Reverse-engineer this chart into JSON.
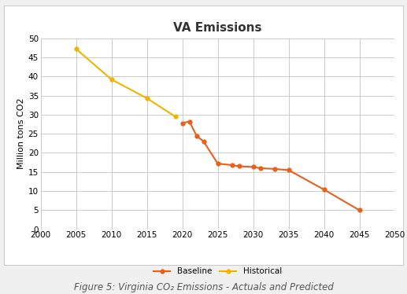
{
  "title": "VA Emissions",
  "xlabel": "",
  "ylabel": "Million tons CO2",
  "caption": "Figure 5: Virginia CO₂ Emissions - Actuals and Predicted",
  "xlim": [
    2000,
    2050
  ],
  "ylim": [
    0,
    50
  ],
  "xticks": [
    2000,
    2005,
    2010,
    2015,
    2020,
    2025,
    2030,
    2035,
    2040,
    2045,
    2050
  ],
  "yticks": [
    0,
    5,
    10,
    15,
    20,
    25,
    30,
    35,
    40,
    45,
    50
  ],
  "baseline": {
    "x": [
      2020,
      2021,
      2022,
      2023,
      2025,
      2027,
      2028,
      2030,
      2031,
      2033,
      2035,
      2040,
      2045
    ],
    "y": [
      27.8,
      28.2,
      24.5,
      23.0,
      17.2,
      16.8,
      16.5,
      16.3,
      16.0,
      15.8,
      15.5,
      10.4,
      5.0
    ],
    "color": "#E8601C",
    "marker": "o",
    "label": "Baseline",
    "linewidth": 1.5,
    "markersize": 3.5
  },
  "historical": {
    "x": [
      2005,
      2010,
      2015,
      2019
    ],
    "y": [
      47.2,
      39.2,
      34.3,
      29.5
    ],
    "color": "#F0B400",
    "marker": "o",
    "label": "Historical",
    "linewidth": 1.5,
    "markersize": 3.5
  },
  "background_color": "#ffffff",
  "outer_background": "#f0f0f0",
  "grid_color": "#cccccc",
  "title_fontsize": 11,
  "axis_label_fontsize": 8,
  "tick_fontsize": 7.5,
  "legend_fontsize": 7.5,
  "caption_fontsize": 8.5
}
